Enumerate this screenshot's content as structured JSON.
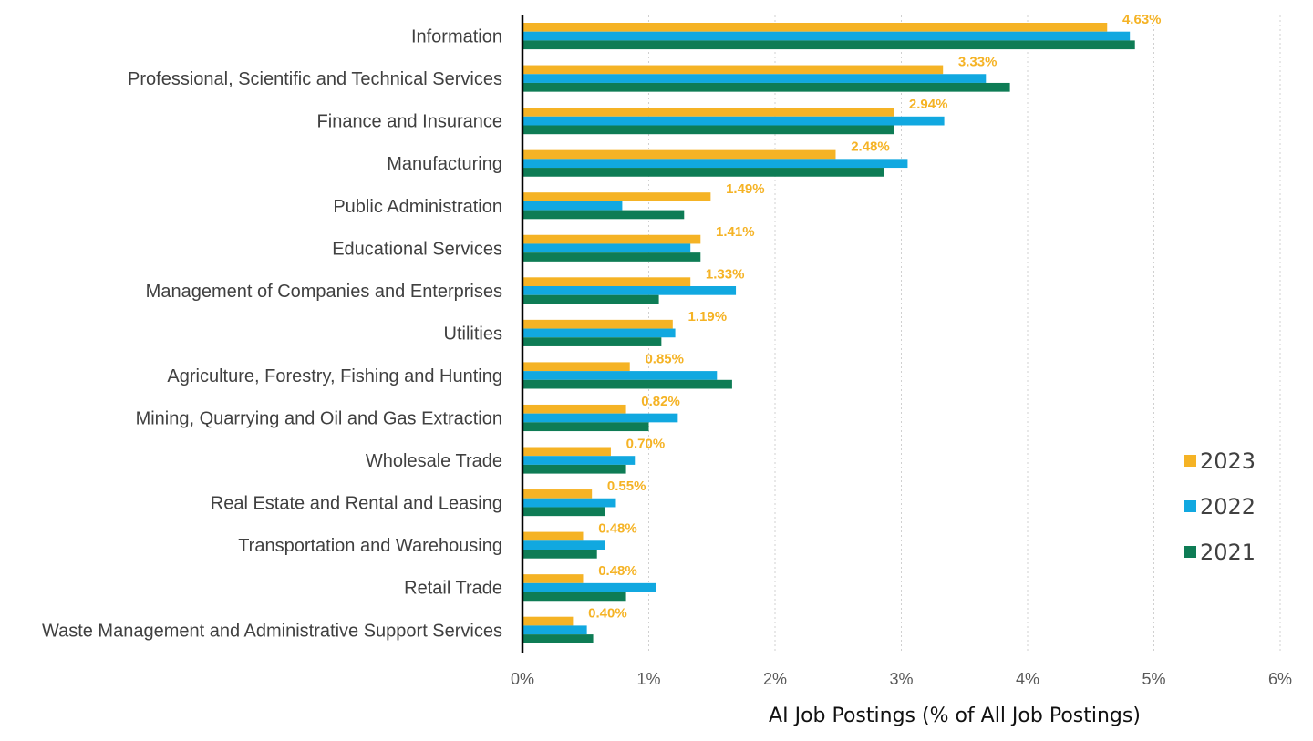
{
  "chart_data": {
    "type": "bar",
    "orientation": "horizontal",
    "xlabel": "AI Job Postings (% of All Job Postings)",
    "ylabel": "",
    "xlim": [
      0,
      6
    ],
    "x_ticks": [
      "0%",
      "1%",
      "2%",
      "3%",
      "4%",
      "5%",
      "6%"
    ],
    "grid": "vertical dotted",
    "legend_position": "right",
    "categories": [
      "Information",
      "Professional, Scientific and Technical Services",
      "Finance and Insurance",
      "Manufacturing",
      "Public Administration",
      "Educational Services",
      "Management of Companies and Enterprises",
      "Utilities",
      "Agriculture, Forestry, Fishing and Hunting",
      "Mining, Quarrying and Oil and Gas Extraction",
      "Wholesale Trade",
      "Real Estate and Rental and Leasing",
      "Transportation and Warehousing",
      "Retail Trade",
      "Waste Management and Administrative Support Services"
    ],
    "series": [
      {
        "name": "2023",
        "color": "#f5b325",
        "values": [
          4.63,
          3.33,
          2.94,
          2.48,
          1.49,
          1.41,
          1.33,
          1.19,
          0.85,
          0.82,
          0.7,
          0.55,
          0.48,
          0.48,
          0.4
        ],
        "data_labels": [
          "4.63%",
          "3.33%",
          "2.94%",
          "2.48%",
          "1.49%",
          "1.41%",
          "1.33%",
          "1.19%",
          "0.85%",
          "0.82%",
          "0.70%",
          "0.55%",
          "0.48%",
          "0.48%",
          "0.40%"
        ]
      },
      {
        "name": "2022",
        "color": "#11a8e0",
        "values": [
          4.81,
          3.67,
          3.34,
          3.05,
          0.79,
          1.33,
          1.69,
          1.21,
          1.54,
          1.23,
          0.89,
          0.74,
          0.65,
          1.06,
          0.51
        ]
      },
      {
        "name": "2021",
        "color": "#0e7c55",
        "values": [
          4.85,
          3.86,
          2.94,
          2.86,
          1.28,
          1.41,
          1.08,
          1.1,
          1.66,
          1.0,
          0.82,
          0.65,
          0.59,
          0.82,
          0.56
        ]
      }
    ]
  }
}
